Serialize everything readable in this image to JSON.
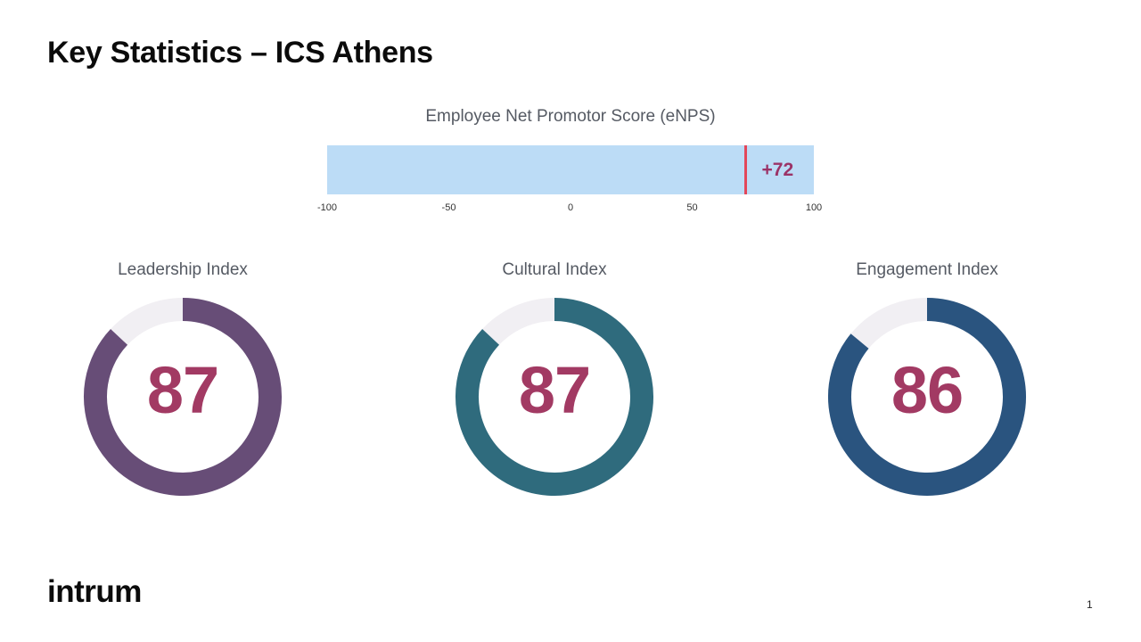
{
  "slide": {
    "title": "Key Statistics – ICS Athens",
    "logo_text": "intrum",
    "page_number": "1"
  },
  "chart_data": [
    {
      "type": "bar",
      "title": "Employee Net Promotor Score (eNPS)",
      "value": 72,
      "value_label": "+72",
      "xlim": [
        -100,
        100
      ],
      "ticks": [
        -100,
        -50,
        0,
        50,
        100
      ],
      "tick_labels": [
        "-100",
        "-50",
        "0",
        "50",
        "100"
      ],
      "bar_color": "#bcdcf6",
      "marker_color": "#e2475a",
      "value_color": "#9b3367"
    },
    {
      "type": "pie",
      "title": "Leadership Index",
      "value": 87,
      "value_label": "87",
      "max": 100,
      "color": "#674d77",
      "track_color": "#f1eff3",
      "number_color": "#a23a63"
    },
    {
      "type": "pie",
      "title": "Cultural Index",
      "value": 87,
      "value_label": "87",
      "max": 100,
      "color": "#2f6b7d",
      "track_color": "#f1eff3",
      "number_color": "#a23a63"
    },
    {
      "type": "pie",
      "title": "Engagement Index",
      "value": 86,
      "value_label": "86",
      "max": 100,
      "color": "#2a547f",
      "track_color": "#f1eff3",
      "number_color": "#a23a63"
    }
  ]
}
